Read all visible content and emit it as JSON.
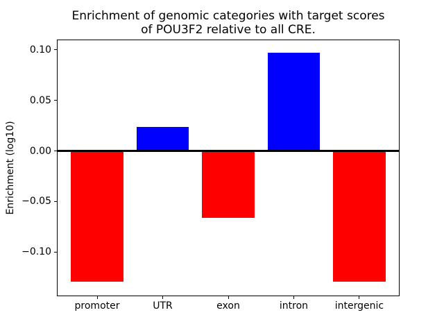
{
  "figure": {
    "background_color": "#ffffff",
    "text_color": "#000000"
  },
  "chart_data": {
    "type": "bar",
    "title": "Enrichment of genomic categories with target scores\nof POU3F2 relative to all CRE.",
    "title_lines": [
      "Enrichment of genomic categories with target scores",
      "of POU3F2 relative to all CRE."
    ],
    "xlabel": "",
    "ylabel": "Enrichment (log10)",
    "categories": [
      "promoter",
      "UTR",
      "exon",
      "intron",
      "intergenic"
    ],
    "values": [
      -0.129,
      0.024,
      -0.066,
      0.097,
      -0.129
    ],
    "bar_colors": [
      "#ff0000",
      "#0000ff",
      "#ff0000",
      "#0000ff",
      "#ff0000"
    ],
    "positive_color": "#0000ff",
    "negative_color": "#ff0000",
    "yticks": [
      {
        "value": 0.1,
        "label": "0.10"
      },
      {
        "value": 0.05,
        "label": "0.05"
      },
      {
        "value": 0.0,
        "label": "0.00"
      },
      {
        "value": -0.05,
        "label": "−0.05"
      },
      {
        "value": -0.1,
        "label": "−0.10"
      }
    ],
    "ylim": [
      -0.1437,
      0.1101
    ],
    "xlim": [
      -0.614,
      4.614
    ],
    "bar_width": 0.8,
    "zero_line": {
      "value": 0.0,
      "color": "#000000",
      "thickness_px": 3
    },
    "grid": false,
    "legend": false,
    "spines": "box"
  }
}
